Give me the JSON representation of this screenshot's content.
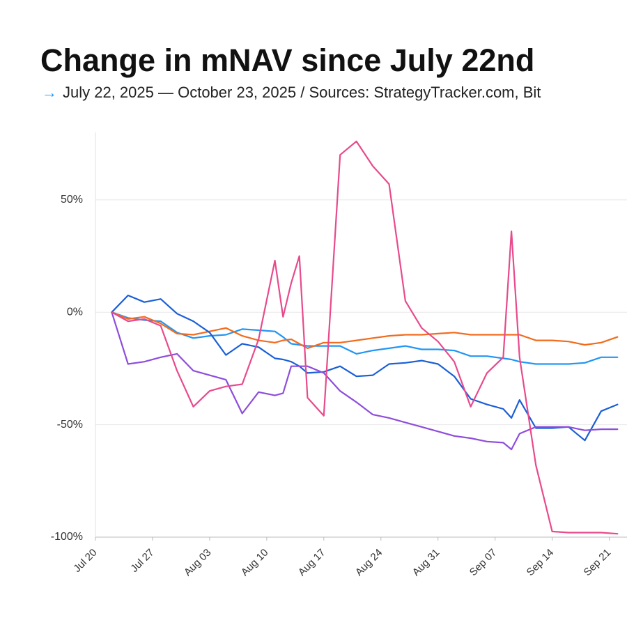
{
  "chart_data": {
    "type": "line",
    "title": "Change in mNAV since July 22nd",
    "subtitle": "July 22, 2025 — October 23, 2025 / Sources: StrategyTracker.com, Bit",
    "x": [
      "Jul 22",
      "Jul 24",
      "Jul 26",
      "Jul 28",
      "Jul 30",
      "Aug 01",
      "Aug 03",
      "Aug 05",
      "Aug 07",
      "Aug 09",
      "Aug 11",
      "Aug 12",
      "Aug 13",
      "Aug 14",
      "Aug 15",
      "Aug 17",
      "Aug 19",
      "Aug 21",
      "Aug 23",
      "Aug 25",
      "Aug 27",
      "Aug 29",
      "Aug 31",
      "Sep 02",
      "Sep 04",
      "Sep 06",
      "Sep 08",
      "Sep 09",
      "Sep 10",
      "Sep 12",
      "Sep 14",
      "Sep 16",
      "Sep 18",
      "Sep 20",
      "Sep 22"
    ],
    "xlim": [
      "Jul 20",
      "Sep 23"
    ],
    "xticks": [
      "Jul 20",
      "Jul 27",
      "Aug 03",
      "Aug 10",
      "Aug 17",
      "Aug 24",
      "Aug 31",
      "Sep 07",
      "Sep 14",
      "Sep 21"
    ],
    "ylim": [
      -100,
      80
    ],
    "yticks": [
      {
        "value": -100,
        "label": "-100%"
      },
      {
        "value": -50,
        "label": "-50%"
      },
      {
        "value": 0,
        "label": "0%"
      },
      {
        "value": 50,
        "label": "50%"
      }
    ],
    "grid": true,
    "series": [
      {
        "color": "#2196f3",
        "values": [
          0,
          -2.5,
          -3.5,
          -4,
          -9,
          -11.5,
          -10.5,
          -10,
          -7.5,
          -8,
          -8.5,
          -11,
          -14,
          -14.5,
          -15,
          -15,
          -15,
          -18.5,
          -17,
          -16,
          -15,
          -16.5,
          -16.5,
          -17,
          -19.5,
          -19.5,
          -20.5,
          -21,
          -22,
          -23,
          -23,
          -23,
          -22.5,
          -20,
          -20
        ]
      },
      {
        "color": "#f26b1d",
        "values": [
          0,
          -3,
          -2,
          -5,
          -9.5,
          -10,
          -8.5,
          -7,
          -10.5,
          -12.5,
          -13.5,
          -12.5,
          -12,
          -14,
          -16,
          -13.5,
          -13.5,
          -12.5,
          -11.5,
          -10.5,
          -10,
          -10,
          -9.5,
          -9,
          -10,
          -10,
          -10,
          -10,
          -10,
          -12.5,
          -12.5,
          -13,
          -14.5,
          -13.5,
          -11
        ]
      },
      {
        "color": "#1a5fd6",
        "values": [
          0,
          7.5,
          4.5,
          5.9,
          -0.6,
          -4,
          -9,
          -19,
          -14,
          -15.5,
          -20.5,
          -21,
          -22,
          -24,
          -27,
          -26.5,
          -24,
          -28.5,
          -28,
          -23,
          -22.5,
          -21.5,
          -23,
          -28.5,
          -38.5,
          -41,
          -43,
          -47,
          -39,
          -51.5,
          -51.5,
          -51,
          -57,
          -44,
          -41
        ]
      },
      {
        "color": "#8e4ddb",
        "values": [
          0,
          -23,
          -22,
          -20,
          -18.5,
          -26,
          -28,
          -30,
          -45,
          -35.5,
          -37,
          -36,
          -24,
          -24,
          -24,
          -27,
          -35,
          -40,
          -45.5,
          -47,
          -49,
          -51,
          -53,
          -55,
          -56,
          -57.5,
          -58,
          -61,
          -54,
          -51,
          -51,
          -51,
          -52.5,
          -52,
          -52
        ]
      },
      {
        "color": "#e84a8c",
        "values": [
          0,
          -4,
          -3,
          -6,
          -26,
          -42,
          -35,
          -33,
          -32,
          -12,
          23,
          -2,
          13,
          25,
          -38,
          -46,
          70,
          76,
          65,
          57,
          5,
          -7,
          -13,
          -22,
          -42,
          -27,
          -20,
          36,
          -20,
          -68,
          -97.5,
          -98,
          -98,
          -98,
          -98.5
        ]
      }
    ]
  }
}
